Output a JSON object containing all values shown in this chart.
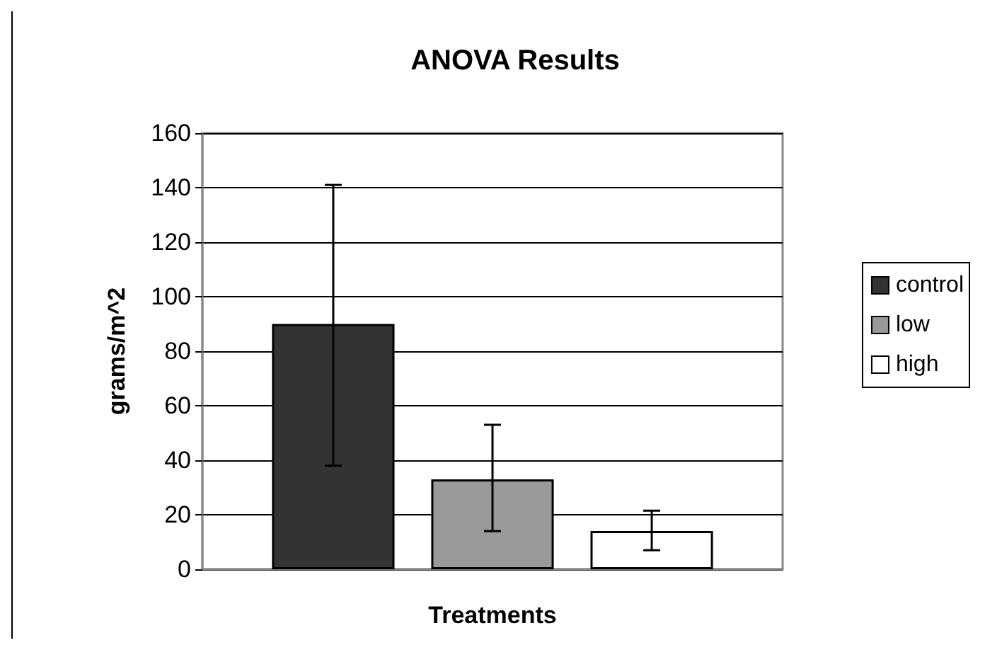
{
  "chart_data": {
    "type": "bar",
    "title": "ANOVA Results",
    "xlabel": "Treatments",
    "ylabel": "grams/m^2",
    "categories": [
      null
    ],
    "series": [
      {
        "name": "control",
        "color": "#333333",
        "values": [
          90
        ],
        "errors": [
          [
            38,
            141
          ]
        ]
      },
      {
        "name": "low",
        "color": "#999999",
        "values": [
          33
        ],
        "errors": [
          [
            14,
            53
          ]
        ]
      },
      {
        "name": "high",
        "color": "#ffffff",
        "values": [
          14
        ],
        "errors": [
          [
            7,
            21.5
          ]
        ]
      }
    ],
    "ylim": [
      0,
      160
    ],
    "yticks": [
      0,
      20,
      40,
      60,
      80,
      100,
      120,
      140,
      160
    ],
    "grid": "y",
    "legend": "right"
  }
}
